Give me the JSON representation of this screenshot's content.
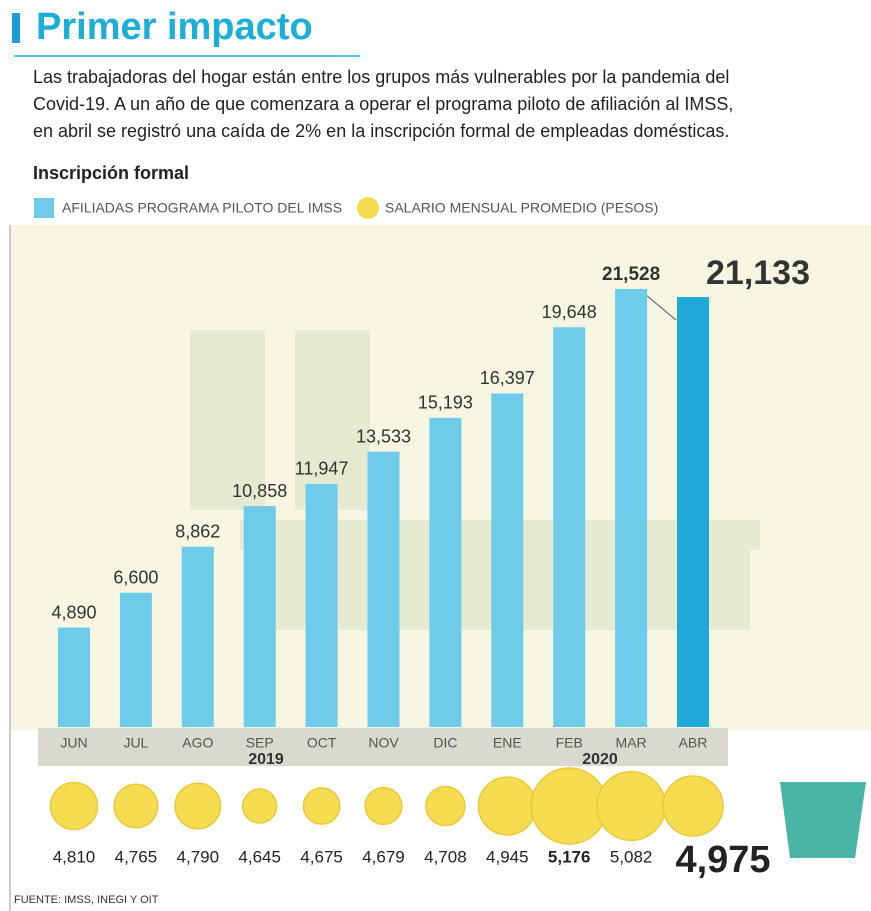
{
  "chart_data": {
    "type": "bar",
    "title": "Primer impacto",
    "description": [
      "Las trabajadoras del hogar están entre los grupos más vulnerables por la pandemia del",
      "Covid-19. A un año de que comenzara a operar el programa piloto de afiliación al IMSS,",
      "en abril se registró una caída de 2% en la inscripción formal de empleadas domésticas."
    ],
    "subtitle": "Inscripción formal",
    "categories": [
      "JUN",
      "JUL",
      "AGO",
      "SEP",
      "OCT",
      "NOV",
      "DIC",
      "ENE",
      "FEB",
      "MAR",
      "ABR"
    ],
    "year_labels": [
      "2019",
      "2020"
    ],
    "series": [
      {
        "name": "AFILIADAS PROGRAMA PILOTO DEL IMSS",
        "color": "#6fcbea",
        "highlight_color": "#1ea9d8",
        "values": [
          4890,
          6600,
          8862,
          10858,
          11947,
          13533,
          15193,
          16397,
          19648,
          21528,
          21133
        ],
        "value_labels": [
          "4,890",
          "6,600",
          "8,862",
          "10,858",
          "11,947",
          "13,533",
          "15,193",
          "16,397",
          "19,648",
          "21,528",
          "21,133"
        ]
      },
      {
        "name": "SALARIO MENSUAL PROMEDIO (PESOS)",
        "color": "#f6dc50",
        "values": [
          4810,
          4765,
          4790,
          4645,
          4675,
          4679,
          4708,
          4945,
          5176,
          5082,
          4975
        ],
        "value_labels": [
          "4,810",
          "4,765",
          "4,790",
          "4,645",
          "4,675",
          "4,679",
          "4,708",
          "4,945",
          "5,176",
          "5,082",
          "4,975"
        ]
      }
    ],
    "source": "FUENTE: IMSS, INEGI Y OIT"
  }
}
